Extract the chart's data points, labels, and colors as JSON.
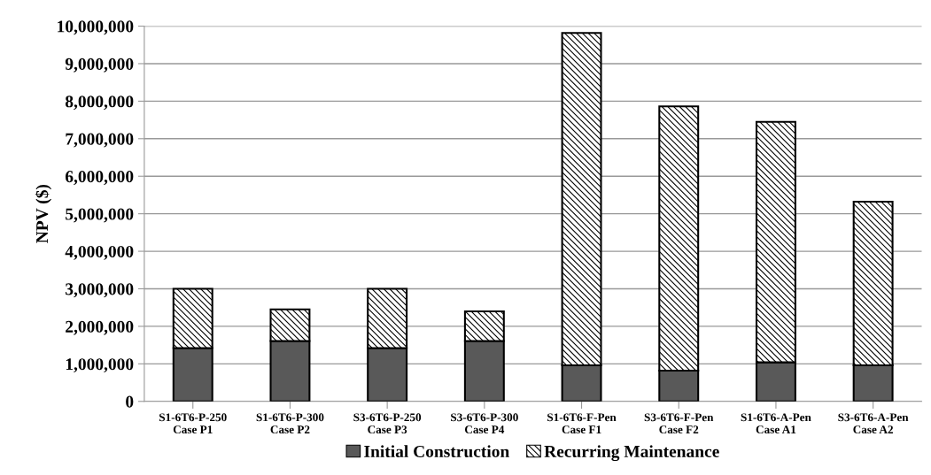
{
  "chart_data": {
    "type": "bar",
    "stacked": true,
    "ylabel": "NPV ($)",
    "categories": [
      "S1-6T6-P-250\nCase P1",
      "S1-6T6-P-300\nCase P2",
      "S3-6T6-P-250\nCase P3",
      "S3-6T6-P-300\nCase P4",
      "S1-6T6-F-Pen\nCase F1",
      "S3-6T6-F-Pen\nCase F2",
      "S1-6T6-A-Pen\nCase A1",
      "S3-6T6-A-Pen\nCase A2"
    ],
    "series": [
      {
        "name": "Initial Construction",
        "color": "#595959",
        "values": [
          1420000,
          1610000,
          1420000,
          1610000,
          960000,
          820000,
          1040000,
          960000
        ]
      },
      {
        "name": "Recurring Maintenance",
        "color": "#000000",
        "values": [
          1580000,
          840000,
          1580000,
          790000,
          8860000,
          7040000,
          6410000,
          4360000
        ]
      }
    ],
    "ylim": [
      0,
      10000000
    ],
    "yticks": [
      {
        "value": 0,
        "label": "0"
      },
      {
        "value": 1000000,
        "label": "1,000,000"
      },
      {
        "value": 2000000,
        "label": "2,000,000"
      },
      {
        "value": 3000000,
        "label": "3,000,000"
      },
      {
        "value": 4000000,
        "label": "4,000,000"
      },
      {
        "value": 5000000,
        "label": "5,000,000"
      },
      {
        "value": 6000000,
        "label": "6,000,000"
      },
      {
        "value": 7000000,
        "label": "7,000,000"
      },
      {
        "value": 8000000,
        "label": "8,000,000"
      },
      {
        "value": 9000000,
        "label": "9,000,000"
      },
      {
        "value": 10000000,
        "label": "10,000,000"
      }
    ],
    "grid": "y",
    "legend": "bottom"
  }
}
